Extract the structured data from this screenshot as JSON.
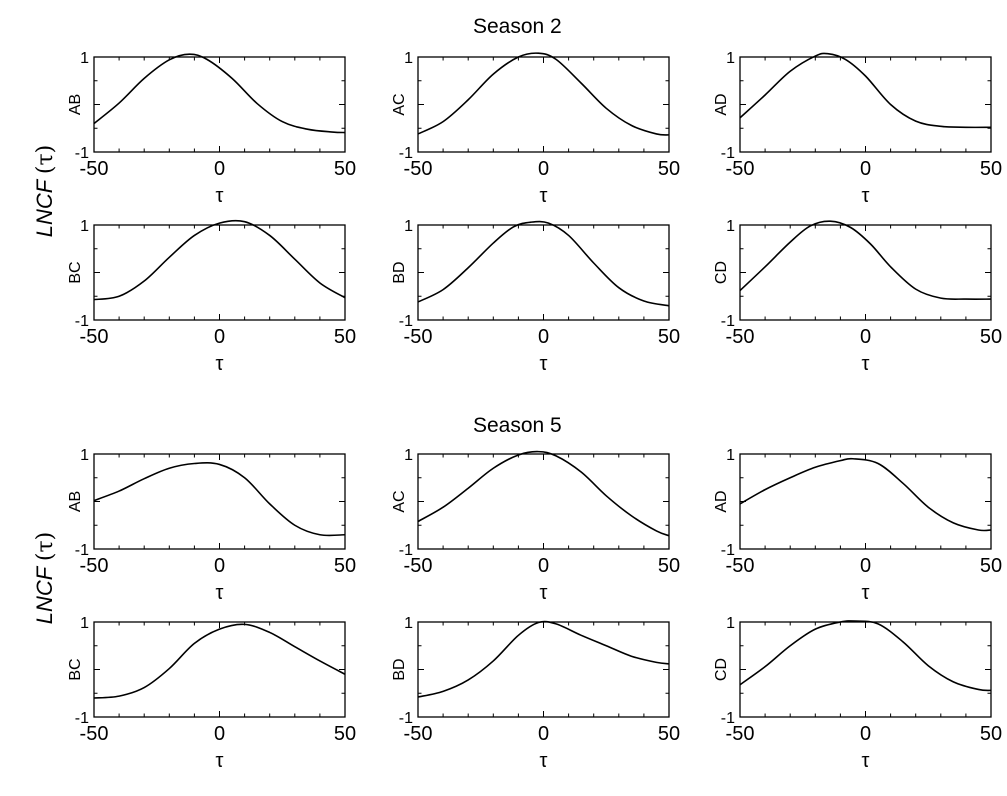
{
  "figure": {
    "ylabel_main": "LNCF",
    "ylabel_arg": "(τ)"
  },
  "chart_data": [
    {
      "season": "Season 2",
      "xlabel": "τ",
      "xlim": [
        -50,
        50
      ],
      "ylim": [
        -1,
        1
      ],
      "xticks": [
        "-50",
        "0",
        "50"
      ],
      "yticks": [
        "1",
        "-1"
      ],
      "type": "line",
      "panels": [
        {
          "name": "AB",
          "x": [
            -50,
            -40,
            -30,
            -20,
            -12,
            -5,
            5,
            15,
            25,
            35,
            45,
            50
          ],
          "y": [
            -0.4,
            0.03,
            0.55,
            0.94,
            1.06,
            0.95,
            0.55,
            0.02,
            -0.36,
            -0.52,
            -0.58,
            -0.59
          ]
        },
        {
          "name": "AC",
          "x": [
            -50,
            -40,
            -30,
            -20,
            -10,
            -2,
            5,
            15,
            25,
            35,
            45,
            50
          ],
          "y": [
            -0.62,
            -0.36,
            0.1,
            0.64,
            1.0,
            1.08,
            0.95,
            0.45,
            -0.08,
            -0.44,
            -0.62,
            -0.64
          ]
        },
        {
          "name": "AD",
          "x": [
            -50,
            -40,
            -30,
            -20,
            -15,
            -8,
            0,
            10,
            20,
            30,
            40,
            50
          ],
          "y": [
            -0.28,
            0.2,
            0.7,
            1.02,
            1.07,
            0.95,
            0.6,
            0.0,
            -0.35,
            -0.46,
            -0.48,
            -0.48
          ]
        },
        {
          "name": "BC",
          "x": [
            -50,
            -40,
            -30,
            -20,
            -10,
            0,
            10,
            20,
            30,
            40,
            50
          ],
          "y": [
            -0.57,
            -0.5,
            -0.18,
            0.32,
            0.78,
            1.04,
            1.07,
            0.78,
            0.28,
            -0.22,
            -0.53
          ]
        },
        {
          "name": "BD",
          "x": [
            -50,
            -40,
            -30,
            -20,
            -12,
            -5,
            2,
            10,
            20,
            30,
            40,
            50
          ],
          "y": [
            -0.62,
            -0.36,
            0.1,
            0.62,
            0.96,
            1.06,
            1.04,
            0.78,
            0.2,
            -0.32,
            -0.6,
            -0.7
          ]
        },
        {
          "name": "CD",
          "x": [
            -50,
            -40,
            -30,
            -22,
            -14,
            -6,
            2,
            10,
            20,
            30,
            40,
            50
          ],
          "y": [
            -0.38,
            0.12,
            0.64,
            0.98,
            1.08,
            0.95,
            0.6,
            0.12,
            -0.35,
            -0.54,
            -0.56,
            -0.56
          ]
        }
      ]
    },
    {
      "season": "Season 5",
      "xlabel": "τ",
      "xlim": [
        -50,
        50
      ],
      "ylim": [
        -1,
        1
      ],
      "xticks": [
        "-50",
        "0",
        "50"
      ],
      "yticks": [
        "1",
        "-1"
      ],
      "type": "line",
      "panels": [
        {
          "name": "AB",
          "x": [
            -50,
            -40,
            -30,
            -20,
            -10,
            0,
            10,
            20,
            30,
            40,
            50
          ],
          "y": [
            0.02,
            0.22,
            0.48,
            0.7,
            0.8,
            0.78,
            0.5,
            -0.05,
            -0.5,
            -0.7,
            -0.7
          ]
        },
        {
          "name": "AC",
          "x": [
            -50,
            -40,
            -30,
            -20,
            -10,
            -2,
            5,
            15,
            25,
            35,
            45,
            50
          ],
          "y": [
            -0.42,
            -0.12,
            0.28,
            0.7,
            0.98,
            1.05,
            0.96,
            0.62,
            0.12,
            -0.3,
            -0.62,
            -0.72
          ]
        },
        {
          "name": "AD",
          "x": [
            -50,
            -40,
            -30,
            -20,
            -10,
            -5,
            5,
            15,
            25,
            35,
            45,
            50
          ],
          "y": [
            -0.05,
            0.25,
            0.5,
            0.72,
            0.86,
            0.9,
            0.8,
            0.38,
            -0.12,
            -0.45,
            -0.6,
            -0.6
          ]
        },
        {
          "name": "BC",
          "x": [
            -50,
            -40,
            -30,
            -20,
            -10,
            0,
            10,
            20,
            30,
            40,
            50
          ],
          "y": [
            -0.6,
            -0.56,
            -0.38,
            0.02,
            0.55,
            0.85,
            0.95,
            0.78,
            0.48,
            0.18,
            -0.1
          ]
        },
        {
          "name": "BD",
          "x": [
            -50,
            -40,
            -30,
            -20,
            -10,
            -2,
            5,
            15,
            25,
            35,
            45,
            50
          ],
          "y": [
            -0.58,
            -0.46,
            -0.22,
            0.18,
            0.72,
            0.99,
            0.96,
            0.72,
            0.5,
            0.28,
            0.15,
            0.12
          ]
        },
        {
          "name": "CD",
          "x": [
            -50,
            -40,
            -30,
            -20,
            -10,
            -4,
            5,
            15,
            25,
            35,
            45,
            50
          ],
          "y": [
            -0.32,
            0.06,
            0.5,
            0.85,
            1.0,
            1.02,
            0.96,
            0.58,
            0.08,
            -0.26,
            -0.42,
            -0.44
          ]
        }
      ]
    }
  ]
}
